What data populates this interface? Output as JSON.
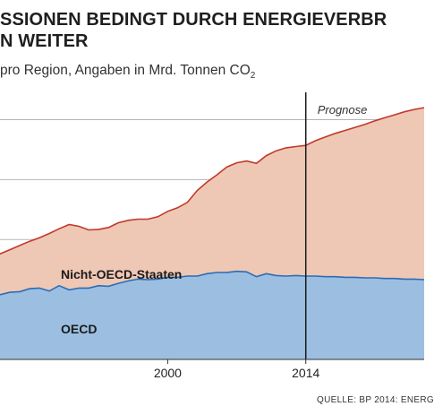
{
  "header": {
    "title_line1": "SSIONEN BEDINGT DURCH ENERGIEVERBR",
    "title_line2": "N WEITER",
    "subtitle_main": "pro Region, Angaben in Mrd. Tonnen CO",
    "subtitle_sub": "2"
  },
  "source": "QUELLE: BP 2014: ENERG",
  "colors": {
    "nicht_oecd_fill": "#efc7b5",
    "nicht_oecd_line": "#c0392b",
    "oecd_fill": "#9cbfe1",
    "oecd_line": "#2a6db5",
    "grid": "#b5b5b5",
    "marker": "#1a1a1a"
  },
  "chart_data": {
    "type": "area",
    "stacked": true,
    "title": "",
    "xlabel": "",
    "ylabel": "",
    "x_ticks": [
      2000,
      2014
    ],
    "xlim": [
      1983,
      2026
    ],
    "ylim": [
      0,
      45
    ],
    "grid": "horizontal",
    "marker": {
      "x": 2014,
      "label": "Prognose"
    },
    "series": [
      {
        "name": "OECD",
        "x": [
          1983,
          1984,
          1985,
          1986,
          1987,
          1988,
          1989,
          1990,
          1991,
          1992,
          1993,
          1994,
          1995,
          1996,
          1997,
          1998,
          1999,
          2000,
          2001,
          2002,
          2003,
          2004,
          2005,
          2006,
          2007,
          2008,
          2009,
          2010,
          2011,
          2012,
          2013,
          2014,
          2015,
          2016,
          2017,
          2018,
          2019,
          2020,
          2021,
          2022,
          2023,
          2024,
          2025,
          2026
        ],
        "values": [
          10.8,
          11.2,
          11.3,
          11.8,
          11.9,
          11.4,
          12.3,
          11.6,
          11.9,
          11.9,
          12.3,
          12.2,
          12.7,
          13.1,
          13.4,
          13.3,
          13.4,
          13.7,
          13.7,
          13.9,
          13.9,
          14.3,
          14.5,
          14.5,
          14.7,
          14.6,
          13.8,
          14.3,
          14.0,
          13.9,
          14.0,
          13.9,
          13.9,
          13.8,
          13.8,
          13.7,
          13.7,
          13.6,
          13.6,
          13.5,
          13.5,
          13.4,
          13.4,
          13.3
        ]
      },
      {
        "name": "Nicht-OECD-Staaten",
        "x": [
          1983,
          1984,
          1985,
          1986,
          1987,
          1988,
          1989,
          1990,
          1991,
          1992,
          1993,
          1994,
          1995,
          1996,
          1997,
          1998,
          1999,
          2000,
          2001,
          2002,
          2003,
          2004,
          2005,
          2006,
          2007,
          2008,
          2009,
          2010,
          2011,
          2012,
          2013,
          2014,
          2015,
          2016,
          2017,
          2018,
          2019,
          2020,
          2021,
          2022,
          2023,
          2024,
          2025,
          2026
        ],
        "values": [
          6.8,
          7.1,
          7.7,
          7.9,
          8.4,
          9.6,
          9.5,
          10.9,
          10.3,
          9.7,
          9.4,
          9.8,
          10.1,
          10.1,
          10.0,
          10.1,
          10.4,
          11.0,
          11.6,
          12.3,
          14.3,
          15.3,
          16.3,
          17.6,
          18.1,
          18.5,
          18.9,
          19.7,
          20.8,
          21.4,
          21.5,
          21.8,
          22.6,
          23.3,
          23.9,
          24.5,
          25.0,
          25.6,
          26.2,
          26.8,
          27.3,
          27.9,
          28.3,
          28.7
        ]
      }
    ]
  }
}
